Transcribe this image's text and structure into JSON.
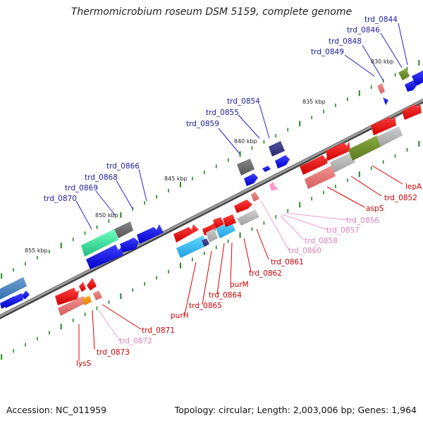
{
  "title": "Thermomicrobium roseum DSM 5159, complete genome",
  "footer": {
    "accession": "Accession: NC_011959",
    "stats": "Topology: circular; Length: 2,003,006 bp; Genes: 1,964"
  },
  "scale_labels": [
    "830 kbp",
    "835 kbp",
    "840 kbp",
    "845 kbp",
    "850 kbp",
    "855 kbp"
  ],
  "labels_upper_strand": [
    "trd_0844",
    "trd_0846",
    "trd_0848",
    "trd_0849",
    "trd_0854",
    "trd_0855",
    "trd_0859",
    "trd_0866",
    "trd_0868",
    "trd_0869",
    "trd_0870"
  ],
  "labels_lower_strand_red": [
    "lepA",
    "trd_0852",
    "aspS",
    "trd_0861",
    "trd_0862",
    "purM",
    "trd_0864",
    "trd_0865",
    "purH",
    "trd_0871",
    "trd_0873",
    "lysS"
  ],
  "labels_lower_strand_pink": [
    "trd_0856",
    "trd_0857",
    "trd_0858",
    "trd_0860",
    "trd_0872"
  ],
  "colors": {
    "backbone": "#777777",
    "forward_cds": "#1010ee",
    "reverse_cds": "#ee1111",
    "ncrna": "#ff88cc",
    "tick": "#228822",
    "label_top": "#1a1aa0",
    "label_red": "#cc0000",
    "label_pink": "#e080b8"
  }
}
